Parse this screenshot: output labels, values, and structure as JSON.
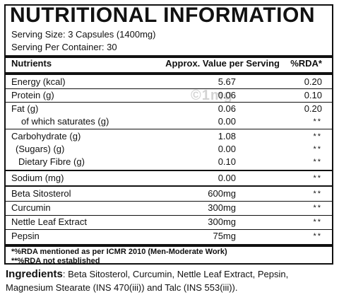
{
  "title": "NUTRITIONAL INFORMATION",
  "serving_size": "Serving Size: 3 Capsules (1400mg)",
  "serving_per_container": "Serving Per Container: 30",
  "headers": {
    "nutrients": "Nutrients",
    "value": "Approx. Value per Serving",
    "rda": "%RDA*"
  },
  "rows": [
    {
      "name": "Energy (kcal)",
      "value": "5.67",
      "rda": "0.20"
    },
    {
      "name": "Protein (g)",
      "value": "0.06",
      "rda": "0.10"
    },
    {
      "name": "Fat (g)",
      "value": "0.06",
      "rda": "0.20"
    },
    {
      "name": "of which saturates (g)",
      "value": "0.00",
      "rda": "**"
    },
    {
      "name": "Carbohydrate (g)",
      "value": "1.08",
      "rda": "**"
    },
    {
      "name": "(Sugars) (g)",
      "value": "0.00",
      "rda": "**"
    },
    {
      "name": "Dietary Fibre (g)",
      "value": "0.10",
      "rda": "**"
    },
    {
      "name": "Sodium (mg)",
      "value": "0.00",
      "rda": "**"
    },
    {
      "name": "Beta Sitosterol",
      "value": "600mg",
      "rda": "**"
    },
    {
      "name": "Curcumin",
      "value": "300mg",
      "rda": "**"
    },
    {
      "name": "Nettle Leaf Extract",
      "value": "300mg",
      "rda": "**"
    },
    {
      "name": "Pepsin",
      "value": "75mg",
      "rda": "**"
    }
  ],
  "notes": [
    "*%RDA mentioned as per ICMR 2010 (Men-Moderate Work)",
    "**%RDA not established"
  ],
  "ingredients_label": "Ingredients",
  "ingredients_text": ": Beta Sitosterol, Curcumin, Nettle Leaf Extract, Pepsin, Magnesium Stearate (INS 470(iii)) and Talc (INS 553(iii)).",
  "watermark": "©1mg"
}
